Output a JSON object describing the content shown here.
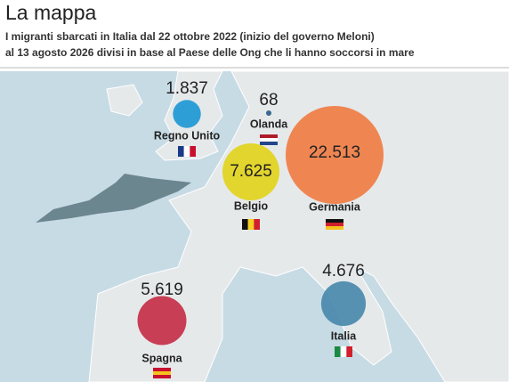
{
  "chart_data": {
    "type": "bubble-map",
    "title": "La mappa",
    "subtitle": [
      "I migranti sbarcati in Italia dal 22 ottobre 2022 (inizio del governo Meloni)",
      "al 13 agosto 2026 divisi in base al Paese delle Ong che li hanno soccorsi in mare"
    ],
    "categories": [
      "Regno Unito",
      "Olanda",
      "Belgio",
      "Germania",
      "Italia",
      "Spagna"
    ],
    "values": [
      1837,
      68,
      7625,
      22513,
      4676,
      5619
    ],
    "value_labels": [
      "1.837",
      "68",
      "7.625",
      "22.513",
      "4.676",
      "5.619"
    ],
    "colors": [
      "#1e98d4",
      "#2a5d8a",
      "#e2d21c",
      "#f07d44",
      "#4a89ad",
      "#c52f48"
    ]
  }
}
